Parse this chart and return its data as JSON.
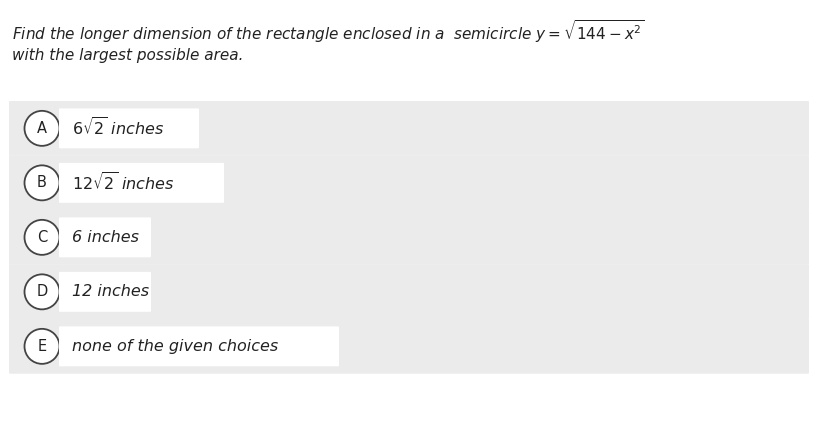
{
  "title_line1": "Find the longer dimension of the rectangle enclosed in a  semicircle $y=\\sqrt{144-x^2}$",
  "title_line2": "with the largest possible area.",
  "bg_color": "#ffffff",
  "option_bg": "#ebebeb",
  "text_box_bg": "#ffffff",
  "circle_edge": "#444444",
  "text_color": "#222222",
  "option_letters": [
    "A",
    "B",
    "C",
    "D",
    "E"
  ],
  "option_math": [
    "$6\\sqrt{2}$",
    "$12\\sqrt{2}$",
    "",
    "",
    ""
  ],
  "option_suffix": [
    " inches",
    " inches",
    "",
    "",
    ""
  ],
  "option_plain": [
    "",
    "",
    "6 inches",
    "12 inches",
    "none of the given choices"
  ],
  "title_fontsize": 11.0,
  "option_fontsize": 11.5,
  "letter_fontsize": 10.5,
  "fig_width": 8.18,
  "fig_height": 4.38,
  "dpi": 100
}
